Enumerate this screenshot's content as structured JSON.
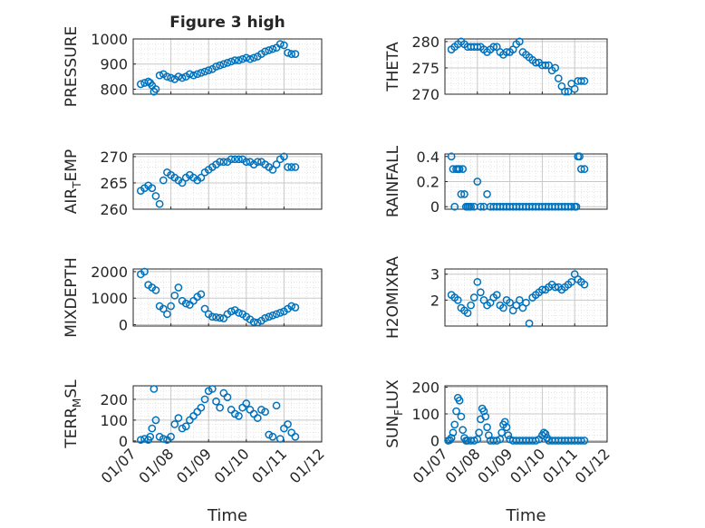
{
  "figure": {
    "title": "Figure 3 high",
    "xlabel": "Time",
    "x_tick_labels": [
      "01/07",
      "01/08",
      "01/09",
      "01/10",
      "01/11",
      "01/12"
    ],
    "marker_color": "#0072BD",
    "grid_color": "#dcdcdc"
  },
  "chart_data": [
    {
      "type": "scatter",
      "ylabel_main": "PRESSURE",
      "ylabel_sub": "",
      "ylabel_tail": "",
      "ylim": [
        780,
        1000
      ],
      "yticks": [
        800,
        900,
        1000
      ],
      "x": [
        7.2,
        7.3,
        7.4,
        7.45,
        7.5,
        7.55,
        7.6,
        7.7,
        7.8,
        7.9,
        8.0,
        8.1,
        8.2,
        8.3,
        8.4,
        8.5,
        8.6,
        8.7,
        8.8,
        8.9,
        9.0,
        9.1,
        9.2,
        9.3,
        9.4,
        9.5,
        9.6,
        9.7,
        9.8,
        9.9,
        10.0,
        10.1,
        10.2,
        10.3,
        10.4,
        10.5,
        10.6,
        10.7,
        10.8,
        10.9,
        11.0,
        11.1,
        11.2,
        11.3
      ],
      "y": [
        820,
        825,
        830,
        825,
        815,
        790,
        800,
        855,
        860,
        850,
        845,
        840,
        850,
        845,
        850,
        860,
        855,
        860,
        865,
        870,
        875,
        880,
        890,
        895,
        900,
        905,
        910,
        915,
        915,
        920,
        925,
        920,
        925,
        930,
        940,
        950,
        955,
        960,
        965,
        980,
        975,
        945,
        940,
        940
      ]
    },
    {
      "type": "scatter",
      "ylabel_main": "THETA",
      "ylabel_sub": "",
      "ylabel_tail": "",
      "ylim": [
        270,
        280.5
      ],
      "yticks": [
        270,
        275,
        280
      ],
      "x": [
        7.2,
        7.3,
        7.4,
        7.5,
        7.6,
        7.7,
        7.8,
        7.9,
        8.0,
        8.1,
        8.2,
        8.3,
        8.4,
        8.5,
        8.6,
        8.7,
        8.8,
        8.9,
        9.0,
        9.1,
        9.2,
        9.3,
        9.4,
        9.5,
        9.6,
        9.7,
        9.8,
        9.9,
        10.0,
        10.1,
        10.2,
        10.3,
        10.4,
        10.5,
        10.6,
        10.7,
        10.8,
        10.9,
        11.0,
        11.1,
        11.2,
        11.3
      ],
      "y": [
        278.5,
        279,
        279.5,
        280,
        279.5,
        279,
        279,
        279,
        279,
        279,
        278.5,
        278,
        278.5,
        279,
        279,
        278,
        277.5,
        278,
        278,
        278.5,
        279.5,
        280,
        278,
        277.5,
        277,
        276.5,
        276,
        276,
        275.5,
        275.5,
        275.5,
        274.5,
        275,
        273,
        271.5,
        270.5,
        270.5,
        272,
        271,
        272.5,
        272.5,
        272.5
      ]
    },
    {
      "type": "scatter",
      "ylabel_main": "AIR",
      "ylabel_sub": "T",
      "ylabel_tail": "EMP",
      "ylim": [
        260,
        270.5
      ],
      "yticks": [
        260,
        265,
        270
      ],
      "x": [
        7.2,
        7.3,
        7.4,
        7.5,
        7.6,
        7.7,
        7.8,
        7.9,
        8.0,
        8.1,
        8.2,
        8.3,
        8.4,
        8.5,
        8.6,
        8.7,
        8.8,
        8.9,
        9.0,
        9.1,
        9.2,
        9.3,
        9.4,
        9.5,
        9.6,
        9.7,
        9.8,
        9.9,
        10.0,
        10.1,
        10.2,
        10.3,
        10.4,
        10.5,
        10.6,
        10.7,
        10.8,
        10.9,
        11.0,
        11.1,
        11.2,
        11.3
      ],
      "y": [
        263.5,
        264,
        264.5,
        264,
        262.5,
        261,
        265.5,
        267,
        266.5,
        266,
        265.5,
        265,
        266,
        266.5,
        266,
        265.5,
        266,
        267,
        267.5,
        268,
        268.5,
        269,
        269,
        269,
        269.5,
        269.5,
        269.5,
        269.5,
        269,
        269,
        268.5,
        269,
        269,
        268.5,
        268,
        267.5,
        268.5,
        269.5,
        270,
        268,
        268,
        268
      ]
    },
    {
      "type": "scatter",
      "ylabel_main": "RAINFALL",
      "ylabel_sub": "",
      "ylabel_tail": "",
      "ylim": [
        -0.02,
        0.42
      ],
      "yticks": [
        0,
        0.2,
        0.4
      ],
      "x": [
        7.2,
        7.25,
        7.3,
        7.35,
        7.4,
        7.45,
        7.5,
        7.55,
        7.6,
        7.65,
        7.7,
        7.75,
        7.8,
        7.9,
        8.0,
        8.1,
        8.2,
        8.3,
        8.4,
        8.5,
        8.6,
        8.7,
        8.8,
        8.9,
        9.0,
        9.1,
        9.2,
        9.3,
        9.4,
        9.5,
        9.6,
        9.7,
        9.8,
        9.9,
        10.0,
        10.1,
        10.2,
        10.3,
        10.4,
        10.5,
        10.6,
        10.7,
        10.8,
        10.9,
        11.0,
        11.05,
        11.1,
        11.15,
        11.2,
        11.3
      ],
      "y": [
        0.4,
        0.3,
        0.0,
        0.3,
        0.3,
        0.3,
        0.1,
        0.3,
        0.1,
        0.0,
        0.0,
        0.0,
        0.0,
        0.0,
        0.2,
        0.0,
        0.0,
        0.1,
        0.0,
        0.0,
        0.0,
        0.0,
        0.0,
        0.0,
        0.0,
        0.0,
        0.0,
        0.0,
        0.0,
        0.0,
        0.0,
        0.0,
        0.0,
        0.0,
        0.0,
        0.0,
        0.0,
        0.0,
        0.0,
        0.0,
        0.0,
        0.0,
        0.0,
        0.0,
        0.0,
        0.0,
        0.4,
        0.4,
        0.3,
        0.3
      ]
    },
    {
      "type": "scatter",
      "ylabel_main": "MIXDEPTH",
      "ylabel_sub": "",
      "ylabel_tail": "",
      "ylim": [
        -50,
        2100
      ],
      "yticks": [
        0,
        1000,
        2000
      ],
      "x": [
        7.2,
        7.3,
        7.4,
        7.5,
        7.6,
        7.7,
        7.8,
        7.9,
        8.0,
        8.1,
        8.2,
        8.3,
        8.4,
        8.5,
        8.6,
        8.7,
        8.8,
        8.9,
        9.0,
        9.1,
        9.2,
        9.3,
        9.4,
        9.5,
        9.6,
        9.7,
        9.8,
        9.9,
        10.0,
        10.1,
        10.2,
        10.3,
        10.4,
        10.5,
        10.6,
        10.7,
        10.8,
        10.9,
        11.0,
        11.1,
        11.2,
        11.3
      ],
      "y": [
        1900,
        2000,
        1500,
        1400,
        1300,
        700,
        600,
        400,
        700,
        1100,
        1400,
        900,
        800,
        750,
        900,
        1050,
        1150,
        600,
        400,
        300,
        280,
        260,
        240,
        400,
        500,
        550,
        450,
        400,
        300,
        200,
        100,
        80,
        150,
        250,
        300,
        350,
        400,
        450,
        500,
        600,
        700,
        650
      ]
    },
    {
      "type": "scatter",
      "ylabel_main": "H2OMIXRA",
      "ylabel_sub": "",
      "ylabel_tail": "",
      "ylim": [
        1,
        3.2
      ],
      "yticks": [
        2,
        3
      ],
      "x": [
        7.2,
        7.3,
        7.4,
        7.5,
        7.6,
        7.7,
        7.8,
        7.9,
        8.0,
        8.1,
        8.2,
        8.3,
        8.4,
        8.5,
        8.6,
        8.7,
        8.8,
        8.9,
        9.0,
        9.1,
        9.2,
        9.3,
        9.4,
        9.5,
        9.6,
        9.7,
        9.8,
        9.9,
        10.0,
        10.1,
        10.2,
        10.3,
        10.4,
        10.5,
        10.6,
        10.7,
        10.8,
        10.9,
        11.0,
        11.1,
        11.2,
        11.3
      ],
      "y": [
        2.2,
        2.1,
        2.0,
        1.7,
        1.6,
        1.5,
        1.8,
        2.1,
        2.7,
        2.3,
        2.0,
        1.8,
        1.9,
        2.1,
        2.2,
        1.8,
        1.7,
        2.0,
        1.9,
        1.6,
        1.8,
        2.0,
        1.7,
        1.9,
        1.1,
        2.1,
        2.2,
        2.3,
        2.4,
        2.4,
        2.5,
        2.6,
        2.5,
        2.5,
        2.4,
        2.5,
        2.6,
        2.7,
        3.0,
        2.8,
        2.7,
        2.6
      ]
    },
    {
      "type": "scatter",
      "ylabel_main": "TERR",
      "ylabel_sub": "M",
      "ylabel_tail": "SL",
      "ylim": [
        -5,
        265
      ],
      "yticks": [
        0,
        100,
        200
      ],
      "x": [
        7.2,
        7.3,
        7.4,
        7.45,
        7.5,
        7.55,
        7.6,
        7.7,
        7.8,
        7.9,
        8.0,
        8.1,
        8.2,
        8.3,
        8.4,
        8.5,
        8.6,
        8.7,
        8.8,
        8.9,
        9.0,
        9.1,
        9.2,
        9.3,
        9.4,
        9.5,
        9.6,
        9.7,
        9.8,
        9.9,
        10.0,
        10.1,
        10.2,
        10.3,
        10.4,
        10.5,
        10.6,
        10.7,
        10.8,
        10.9,
        11.0,
        11.1,
        11.2,
        11.3
      ],
      "y": [
        5,
        10,
        5,
        20,
        60,
        250,
        100,
        20,
        10,
        5,
        20,
        80,
        110,
        60,
        70,
        100,
        120,
        140,
        160,
        200,
        240,
        250,
        190,
        160,
        230,
        210,
        150,
        130,
        120,
        160,
        180,
        150,
        130,
        110,
        150,
        140,
        30,
        20,
        170,
        10,
        60,
        80,
        40,
        20
      ]
    },
    {
      "type": "scatter",
      "ylabel_main": "SUN",
      "ylabel_sub": "F",
      "ylabel_tail": "LUX",
      "ylim": [
        -5,
        205
      ],
      "yticks": [
        0,
        100,
        200
      ],
      "x": [
        7.1,
        7.15,
        7.2,
        7.25,
        7.3,
        7.35,
        7.4,
        7.45,
        7.5,
        7.55,
        7.6,
        7.65,
        7.7,
        7.8,
        7.9,
        8.0,
        8.05,
        8.1,
        8.15,
        8.2,
        8.25,
        8.3,
        8.35,
        8.4,
        8.5,
        8.6,
        8.7,
        8.75,
        8.8,
        8.85,
        8.9,
        8.95,
        9.0,
        9.1,
        9.2,
        9.3,
        9.4,
        9.5,
        9.6,
        9.7,
        9.8,
        9.9,
        10.0,
        10.05,
        10.1,
        10.15,
        10.2,
        10.3,
        10.4,
        10.5,
        10.6,
        10.7,
        10.8,
        10.9,
        11.0,
        11.1,
        11.2,
        11.3
      ],
      "y": [
        0,
        2,
        10,
        30,
        60,
        110,
        160,
        150,
        90,
        40,
        10,
        0,
        0,
        0,
        0,
        5,
        30,
        80,
        120,
        110,
        90,
        50,
        20,
        0,
        0,
        0,
        5,
        30,
        60,
        70,
        50,
        20,
        5,
        0,
        0,
        0,
        0,
        0,
        0,
        0,
        0,
        5,
        20,
        30,
        25,
        10,
        0,
        0,
        0,
        0,
        0,
        0,
        0,
        0,
        0,
        0,
        0,
        0
      ]
    }
  ]
}
